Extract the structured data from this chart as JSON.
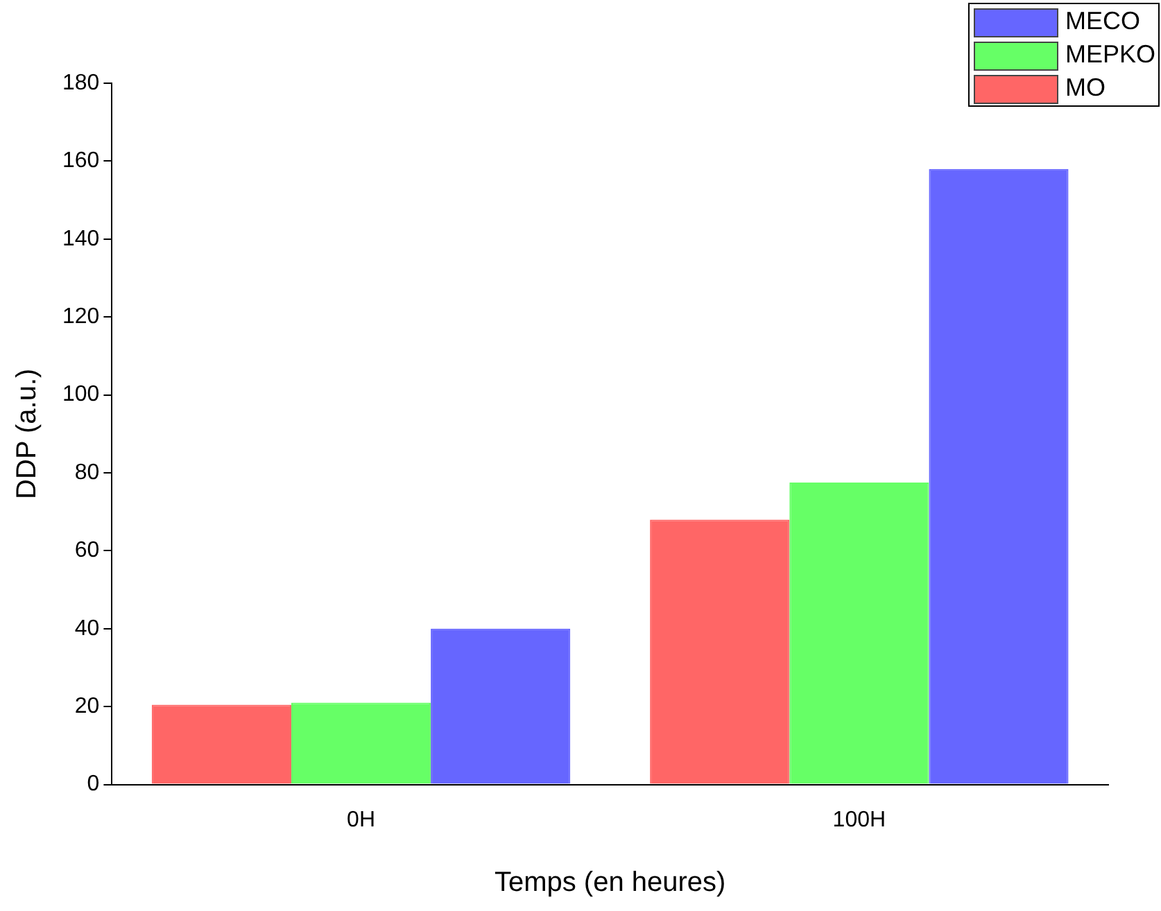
{
  "chart_data": {
    "type": "bar",
    "xlabel": "Temps (en heures)",
    "ylabel": "DDP (a.u.)",
    "categories": [
      "0H",
      "100H"
    ],
    "series": [
      {
        "name": "MO",
        "color": "#ff6666",
        "values": [
          20.5,
          68
        ]
      },
      {
        "name": "MEPKO",
        "color": "#66ff66",
        "values": [
          21,
          77.5
        ]
      },
      {
        "name": "MECO",
        "color": "#6666ff",
        "values": [
          40,
          158
        ]
      }
    ],
    "ylim": [
      0,
      180
    ],
    "yticks": [
      0,
      20,
      40,
      60,
      80,
      100,
      120,
      140,
      160,
      180
    ],
    "grid": false,
    "legend": "top right"
  }
}
